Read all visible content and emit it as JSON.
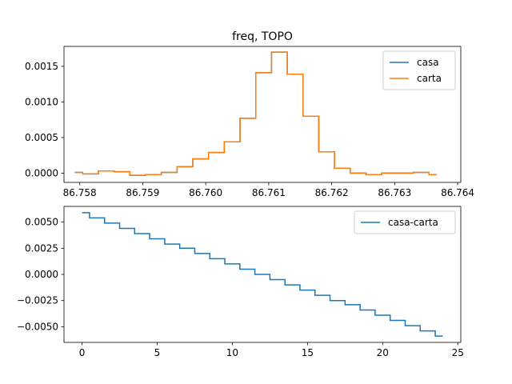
{
  "chart_data": [
    {
      "type": "line",
      "drawstyle": "steps-mid",
      "title": "freq, TOPO",
      "xlabel": "",
      "ylabel": "",
      "xlim": [
        86.75775,
        86.76405
      ],
      "ylim": [
        -0.00013,
        0.00178
      ],
      "xticks": [
        86.758,
        86.759,
        86.76,
        86.761,
        86.762,
        86.763,
        86.764
      ],
      "xtick_labels": [
        "86.758",
        "86.759",
        "86.760",
        "86.761",
        "86.762",
        "86.763",
        "86.764"
      ],
      "yticks": [
        0.0,
        0.0005,
        0.001,
        0.0015
      ],
      "ytick_labels": [
        "0.0000",
        "0.0005",
        "0.0010",
        "0.0015"
      ],
      "legend_position": "top-right",
      "x": [
        86.75792,
        86.75817,
        86.75842,
        86.75867,
        86.75892,
        86.75917,
        86.75942,
        86.75967,
        86.75992,
        86.76017,
        86.76042,
        86.76067,
        86.76092,
        86.76117,
        86.76142,
        86.76167,
        86.76192,
        86.76217,
        86.76242,
        86.76267,
        86.76292,
        86.76317,
        86.76342,
        86.76367
      ],
      "series": [
        {
          "name": "casa",
          "color": "#1f77b4",
          "values": [
            1e-05,
            -1e-05,
            3e-05,
            2e-05,
            -3e-05,
            -2e-05,
            1e-05,
            9e-05,
            0.0002,
            0.00029,
            0.00044,
            0.00077,
            0.00141,
            0.0017,
            0.00139,
            0.0008,
            0.0003,
            7e-05,
            0.0,
            -2e-05,
            0.0,
            0.0,
            1e-05,
            -2e-05
          ]
        },
        {
          "name": "carta",
          "color": "#ff7f0e",
          "values": [
            1e-05,
            -1e-05,
            3e-05,
            2e-05,
            -3e-05,
            -2e-05,
            1e-05,
            9e-05,
            0.0002,
            0.00029,
            0.00044,
            0.00077,
            0.00141,
            0.0017,
            0.00139,
            0.0008,
            0.0003,
            7e-05,
            0.0,
            -2e-05,
            0.0,
            0.0,
            1e-05,
            -2e-05
          ]
        }
      ]
    },
    {
      "type": "line",
      "drawstyle": "steps-mid",
      "title": "",
      "xlabel": "",
      "ylabel": "",
      "xlim": [
        -1.2,
        25.2
      ],
      "ylim": [
        -0.0065,
        0.0065
      ],
      "xticks": [
        0,
        5,
        10,
        15,
        20,
        25
      ],
      "xtick_labels": [
        "0",
        "5",
        "10",
        "15",
        "20",
        "25"
      ],
      "yticks": [
        0.005,
        0.0025,
        0.0,
        -0.0025,
        -0.005
      ],
      "ytick_labels": [
        "0.0050",
        "0.0025",
        "0.0000",
        "−0.0025",
        "−0.0050"
      ],
      "legend_position": "top-right",
      "x": [
        0,
        1,
        2,
        3,
        4,
        5,
        6,
        7,
        8,
        9,
        10,
        11,
        12,
        13,
        14,
        15,
        16,
        17,
        18,
        19,
        20,
        21,
        22,
        23,
        24
      ],
      "series": [
        {
          "name": "casa-carta",
          "color": "#1f77b4",
          "values": [
            0.0059,
            0.0054,
            0.0049,
            0.0044,
            0.0039,
            0.0034,
            0.0029,
            0.0025,
            0.002,
            0.0015,
            0.001,
            0.0005,
            0.0,
            -0.0005,
            -0.001,
            -0.0015,
            -0.002,
            -0.0025,
            -0.0029,
            -0.0034,
            -0.0039,
            -0.0044,
            -0.0049,
            -0.0054,
            -0.0059
          ]
        }
      ]
    }
  ]
}
